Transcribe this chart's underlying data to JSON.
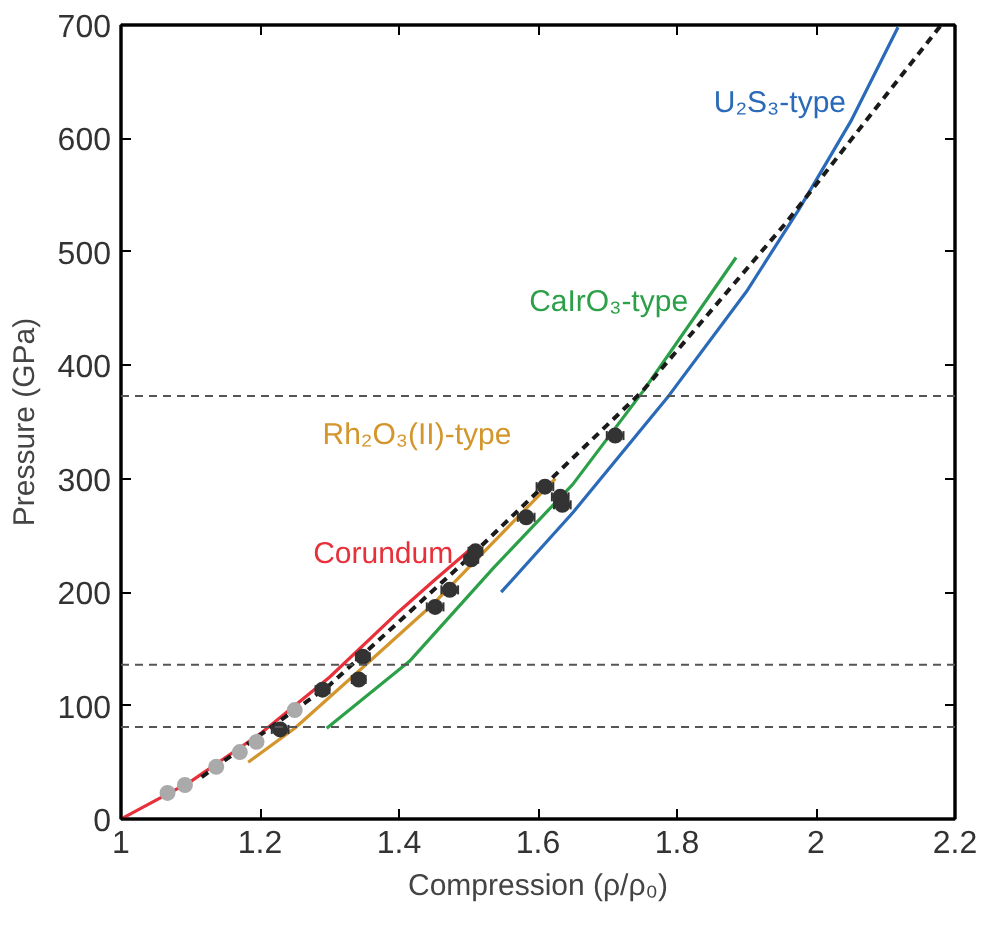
{
  "chart_data": {
    "type": "line",
    "xlabel": "Compression (ρ/ρ₀)",
    "ylabel": "Pressure (GPa)",
    "xlim": [
      1.0,
      2.2
    ],
    "xticks": [
      1.0,
      1.2,
      1.4,
      1.6,
      1.8,
      2.0,
      2.2
    ],
    "ylim": [
      0,
      700
    ],
    "yticks": [
      0,
      100,
      200,
      300,
      400,
      500,
      600,
      700
    ],
    "series": [
      {
        "name": "Corundum",
        "color": "#e8303a",
        "x": [
          1.0,
          1.1,
          1.2,
          1.3,
          1.4,
          1.45,
          1.501
        ],
        "values": [
          0,
          33,
          75,
          125,
          183,
          210,
          237
        ]
      },
      {
        "name": "Rh₂O₃(II)-type",
        "color": "#d4962c",
        "x": [
          1.183,
          1.25,
          1.345,
          1.45,
          1.577,
          1.625
        ],
        "values": [
          50,
          80,
          132,
          190,
          270,
          300
        ]
      },
      {
        "name": "CaIrO₃-type",
        "color": "#2ca048",
        "x": [
          1.296,
          1.415,
          1.537,
          1.65,
          1.751,
          1.885
        ],
        "values": [
          80,
          139,
          222,
          295,
          377,
          495
        ]
      },
      {
        "name": "U₂S₃-type",
        "color": "#2a6ab8",
        "x": [
          1.547,
          1.65,
          1.788,
          1.9,
          1.975,
          2.05,
          2.118
        ],
        "values": [
          200,
          270,
          373,
          465,
          537,
          615,
          698
        ]
      },
      {
        "type": "line",
        "line_style": "dashed",
        "color": "#1a1a1a",
        "x": [
          1.116,
          1.3,
          1.5,
          1.75,
          1.956,
          2.18
        ],
        "values": [
          37,
          118,
          230,
          377,
          525,
          700
        ]
      },
      {
        "type": "scatter",
        "marker": "circle",
        "color": "#aaaaaa",
        "x": [
          1.067,
          1.092,
          1.137,
          1.171,
          1.195,
          1.25
        ],
        "values": [
          23,
          30,
          46,
          59,
          68,
          96
        ]
      },
      {
        "type": "scatter",
        "marker": "circle",
        "color": "#333333",
        "x": [
          1.229,
          1.29,
          1.342,
          1.348,
          1.452,
          1.473,
          1.504,
          1.51,
          1.583,
          1.61,
          1.632,
          1.635,
          1.711
        ],
        "values": [
          79,
          114,
          123,
          143,
          187,
          202,
          229,
          236,
          266,
          293,
          284,
          277,
          338
        ],
        "xerrors": [
          0.012,
          0.01,
          0.01,
          0.01,
          0.012,
          0.012,
          0.01,
          0.01,
          0.012,
          0.012,
          0.012,
          0.012,
          0.012
        ]
      }
    ],
    "ref_lines": [
      {
        "axis": "y",
        "value": 81,
        "color": "#555555",
        "line_style": "dashed"
      },
      {
        "axis": "y",
        "value": 136,
        "color": "#555555",
        "line_style": "dashed"
      },
      {
        "axis": "y",
        "value": 373,
        "color": "#555555",
        "line_style": "dashed"
      }
    ],
    "grid": false
  }
}
